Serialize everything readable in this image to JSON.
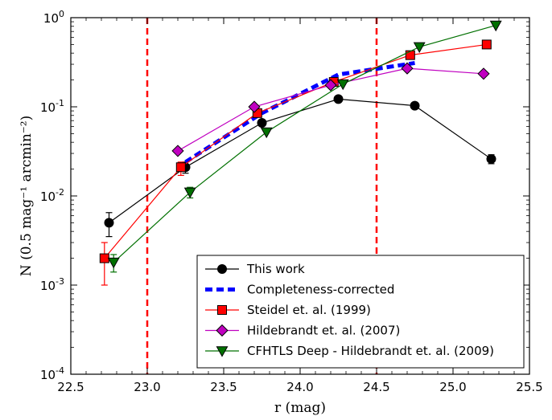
{
  "chart_data": {
    "type": "line",
    "xlabel": "r (mag)",
    "ylabel": "N (0.5 mag⁻¹ arcmin⁻²)",
    "xlim": [
      22.5,
      25.5
    ],
    "ylim": [
      0.0001,
      1
    ],
    "yscale": "log",
    "grid": false,
    "legend_position": "bottom-right",
    "x_ticks": [
      22.5,
      23.0,
      23.5,
      24.0,
      24.5,
      25.0,
      25.5
    ],
    "x_tick_labels": [
      "22.5",
      "23.0",
      "23.5",
      "24.0",
      "24.5",
      "25.0",
      "25.5"
    ],
    "y_ticks": [
      0.0001,
      0.001,
      0.01,
      0.1,
      1
    ],
    "y_tick_labels": [
      {
        "base": "10",
        "exp": "-4"
      },
      {
        "base": "10",
        "exp": "-3"
      },
      {
        "base": "10",
        "exp": "-2"
      },
      {
        "base": "10",
        "exp": "-1"
      },
      {
        "base": "10",
        "exp": "0"
      }
    ],
    "vertical_lines": [
      {
        "x": 23.0,
        "color": "#ff0000",
        "style": "dashed"
      },
      {
        "x": 24.5,
        "color": "#ff0000",
        "style": "dashed"
      }
    ],
    "series": [
      {
        "name": "This work",
        "color": "#000000",
        "marker": "circle",
        "line": "solid",
        "x": [
          22.75,
          23.25,
          23.75,
          24.25,
          24.75,
          25.25
        ],
        "y": [
          0.005,
          0.021,
          0.066,
          0.122,
          0.103,
          0.026
        ],
        "yerr_low": [
          0.0035,
          0.018,
          null,
          null,
          null,
          0.023
        ],
        "yerr_high": [
          0.0065,
          0.024,
          null,
          null,
          null,
          0.029
        ]
      },
      {
        "name": "Completeness-corrected",
        "color": "#0000ff",
        "marker": "none",
        "line": "dashed-thick",
        "x": [
          23.25,
          23.75,
          24.25,
          24.75
        ],
        "y": [
          0.024,
          0.085,
          0.23,
          0.31
        ]
      },
      {
        "name": "Steidel et. al. (1999)",
        "color": "#ff0000",
        "marker": "square",
        "line": "solid",
        "x": [
          22.72,
          23.22,
          23.72,
          24.22,
          24.72,
          25.22
        ],
        "y": [
          0.002,
          0.021,
          0.085,
          0.19,
          0.38,
          0.5
        ],
        "yerr_low": [
          0.001,
          0.017,
          null,
          null,
          null,
          null
        ],
        "yerr_high": [
          0.003,
          0.024,
          null,
          null,
          null,
          null
        ]
      },
      {
        "name": "Hildebrandt et. al. (2007)",
        "color": "#c000c0",
        "marker": "diamond",
        "line": "solid",
        "x": [
          23.2,
          23.7,
          24.2,
          24.7,
          25.2
        ],
        "y": [
          0.032,
          0.1,
          0.175,
          0.27,
          0.235
        ]
      },
      {
        "name": "CFHTLS Deep - Hildebrandt et. al. (2009)",
        "color": "#007000",
        "marker": "triangle-down",
        "line": "solid",
        "x": [
          22.78,
          23.28,
          23.78,
          24.28,
          24.78,
          25.28
        ],
        "y": [
          0.0018,
          0.011,
          0.052,
          0.18,
          0.47,
          0.82
        ],
        "yerr_low": [
          0.0014,
          0.0095,
          null,
          null,
          null,
          null
        ],
        "yerr_high": [
          0.0022,
          0.0125,
          null,
          null,
          null,
          null
        ]
      }
    ]
  }
}
